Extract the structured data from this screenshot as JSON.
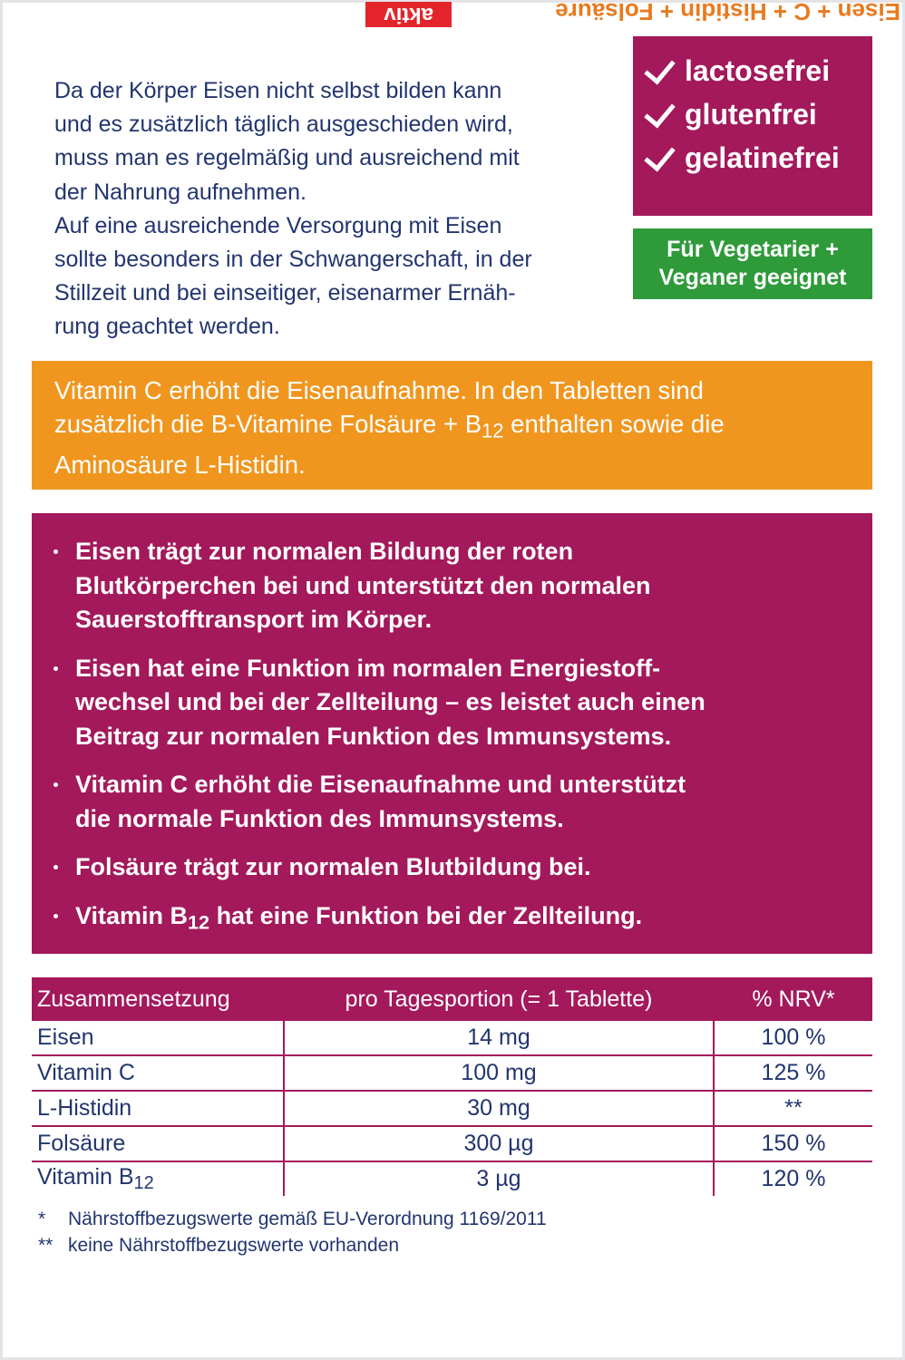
{
  "top_flap": {
    "product": "Eisen + C + Histidin + Folsäure",
    "tag": "aktiv"
  },
  "intro": {
    "lines": [
      "Da der Körper Eisen nicht selbst bilden kann",
      "und es zusätzlich täglich ausgeschieden wird,",
      "muss man es regelmäßig und ausreichend mit",
      "der Nahrung aufnehmen.",
      "Auf eine ausreichende Versorgung mit Eisen",
      "sollte besonders in der Schwangerschaft, in der",
      "Stillzeit und bei einseitiger, eisenarmer Ernäh-",
      "rung geachtet werden."
    ]
  },
  "badges": {
    "free_of": [
      "lactosefrei",
      "glutenfrei",
      "gelatinefrei"
    ],
    "vegan": [
      "Für Vegetarier +",
      "Veganer geeignet"
    ]
  },
  "orange": {
    "line1": "Vitamin C erhöht die Eisenaufnahme. In den Tabletten sind",
    "line2_before": "zusätzlich die B-Vitamine Folsäure + B",
    "line2_sub": "12",
    "line2_after": " enthalten sowie die",
    "line3": "Aminosäure L-Histidin."
  },
  "bullets": [
    {
      "lines": [
        "Eisen trägt zur normalen Bildung der roten",
        "Blutkörperchen bei und unterstützt den normalen",
        "Sauerstofftransport im Körper."
      ]
    },
    {
      "lines": [
        "Eisen hat eine Funktion im normalen Energiestoff-",
        "wechsel und bei der Zellteilung – es leistet auch einen",
        "Beitrag zur normalen Funktion des Immunsystems."
      ]
    },
    {
      "lines": [
        "Vitamin C erhöht die Eisenaufnahme und unterstützt",
        "die normale Funktion des Immunsystems."
      ]
    },
    {
      "lines": [
        "Folsäure trägt zur normalen Blutbildung bei."
      ]
    },
    {
      "before": "Vitamin B",
      "sub": "12",
      "after": " hat eine Funktion bei der Zellteilung."
    }
  ],
  "table": {
    "header": [
      "Zusammensetzung",
      "pro Tagesportion (= 1 Tablette)",
      "% NRV*"
    ],
    "rows": [
      [
        "Eisen",
        "14 mg",
        "100 %"
      ],
      [
        "Vitamin C",
        "100 mg",
        "125 %"
      ],
      [
        "L-Histidin",
        "30 mg",
        "**"
      ],
      [
        "Folsäure",
        "300 µg",
        "150 %"
      ],
      [
        {
          "text": "Vitamin B",
          "sub": "12"
        },
        "3 µg",
        "120 %"
      ]
    ]
  },
  "footnotes": [
    {
      "mark": "*",
      "text": "Nährstoffbezugswerte gemäß EU-Verordnung 1169/2011"
    },
    {
      "mark": "**",
      "text": "keine Nährstoffbezugswerte vorhanden"
    }
  ]
}
